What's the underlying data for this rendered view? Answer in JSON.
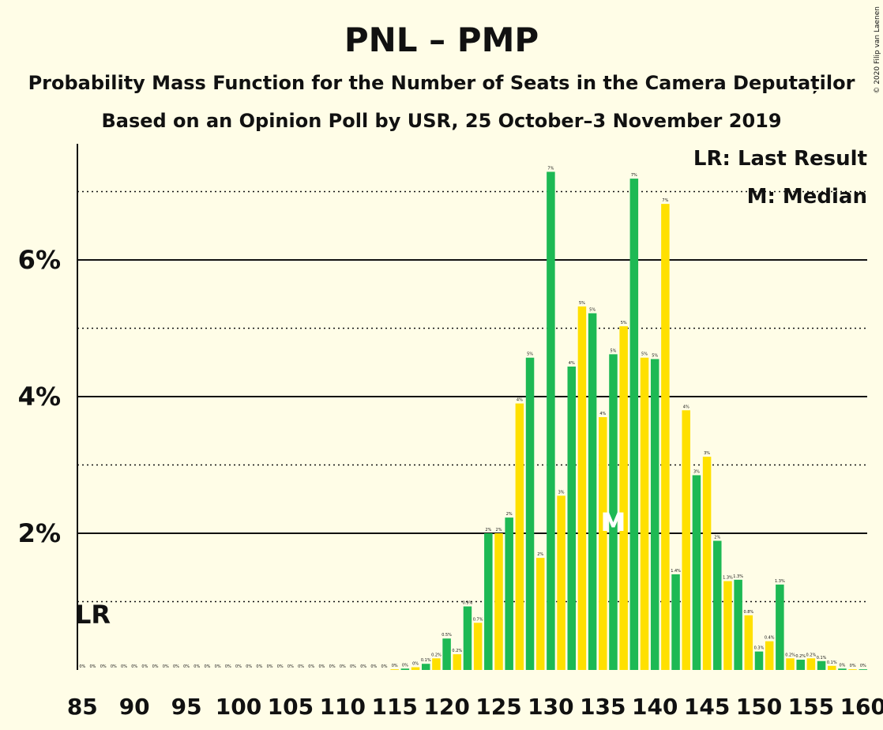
{
  "copyright": "© 2020 Filip van Laenen",
  "chart_data": {
    "type": "bar",
    "title": "PNL – PMP",
    "subtitle": "Probability Mass Function for the Number of Seats in the Camera Deputaților",
    "subtitle2": "Based on an Opinion Poll by USR, 25 October–3 November 2019",
    "legend": [
      "LR: Last Result",
      "M: Median"
    ],
    "legend_position": "top-right",
    "ylim": [
      0,
      7.7
    ],
    "yticks": [
      {
        "value": 2,
        "label": "2%"
      },
      {
        "value": 4,
        "label": "4%"
      },
      {
        "value": 6,
        "label": "6%"
      }
    ],
    "dotted_gridlines": [
      1,
      3,
      5,
      7
    ],
    "xticks": [
      "85",
      "90",
      "95",
      "100",
      "105",
      "110",
      "115",
      "120",
      "125",
      "130",
      "135",
      "140",
      "145",
      "150",
      "155",
      "160"
    ],
    "colors": {
      "green": "#1DB954",
      "yellow": "#FFE000",
      "background": "#FFFDE7"
    },
    "last_result": {
      "seat": 86,
      "label": "LR"
    },
    "median": {
      "seat": 136,
      "label": "M"
    },
    "x": [
      85,
      86,
      87,
      88,
      89,
      90,
      91,
      92,
      93,
      94,
      95,
      96,
      97,
      98,
      99,
      100,
      101,
      102,
      103,
      104,
      105,
      106,
      107,
      108,
      109,
      110,
      111,
      112,
      113,
      114,
      115,
      116,
      117,
      118,
      119,
      120,
      121,
      122,
      123,
      124,
      125,
      126,
      127,
      128,
      129,
      130,
      131,
      132,
      133,
      134,
      135,
      136,
      137,
      138,
      139,
      140,
      141,
      142,
      143,
      144,
      145,
      146,
      147,
      148,
      149,
      150,
      151,
      152,
      153,
      154,
      155,
      156,
      157,
      158,
      159,
      160
    ],
    "values": [
      0,
      0,
      0,
      0,
      0,
      0,
      0,
      0,
      0,
      0,
      0,
      0,
      0,
      0,
      0,
      0,
      0,
      0,
      0,
      0,
      0,
      0,
      0,
      0,
      0,
      0,
      0,
      0,
      0,
      0,
      0.01,
      0.02,
      0.04,
      0.09,
      0.17,
      0.46,
      0.23,
      0.93,
      0.69,
      2.0,
      2.0,
      2.23,
      3.9,
      4.57,
      1.64,
      7.29,
      2.55,
      4.44,
      5.32,
      5.22,
      3.7,
      4.62,
      5.03,
      7.19,
      4.57,
      4.55,
      6.82,
      1.4,
      3.8,
      2.85,
      3.12,
      1.89,
      1.3,
      1.32,
      0.8,
      0.27,
      0.42,
      1.25,
      0.17,
      0.15,
      0.17,
      0.13,
      0.06,
      0.02,
      0.01,
      0.01
    ],
    "labels": [
      "0%",
      "0%",
      "0%",
      "0%",
      "0%",
      "0%",
      "0%",
      "0%",
      "0%",
      "0%",
      "0%",
      "0%",
      "0%",
      "0%",
      "0%",
      "0%",
      "0%",
      "0%",
      "0%",
      "0%",
      "0%",
      "0%",
      "0%",
      "0%",
      "0%",
      "0%",
      "0%",
      "0%",
      "0%",
      "0%",
      "0%",
      "0%",
      "0%",
      "0.1%",
      "0.2%",
      "0.5%",
      "0.2%",
      "0.9%",
      "0.7%",
      "2%",
      "2%",
      "2%",
      "4%",
      "5%",
      "2%",
      "7%",
      "3%",
      "4%",
      "5%",
      "5%",
      "4%",
      "5%",
      "5%",
      "7%",
      "5%",
      "5%",
      "7%",
      "1.4%",
      "4%",
      "3%",
      "3%",
      "2%",
      "1.3%",
      "1.3%",
      "0.8%",
      "0.3%",
      "0.4%",
      "1.3%",
      "0.2%",
      "0.2%",
      "0.2%",
      "0.1%",
      "0.1%",
      "0%",
      "0%",
      "0%"
    ]
  }
}
